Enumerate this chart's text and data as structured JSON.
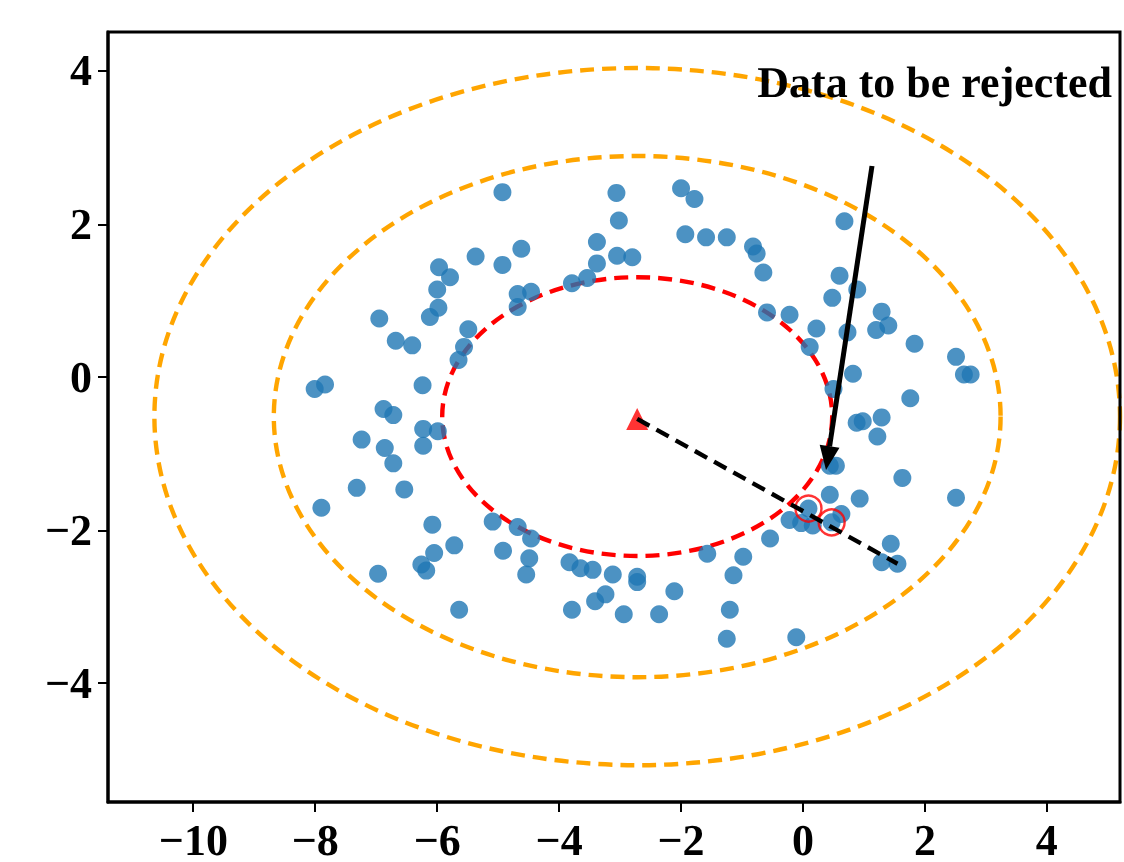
{
  "chart_data": {
    "type": "scatter",
    "xlim": [
      -11.4,
      5.2
    ],
    "ylim": [
      -5.55,
      4.5
    ],
    "xticks": [
      {
        "value": -10,
        "label": "−10"
      },
      {
        "value": -8,
        "label": "−8"
      },
      {
        "value": -6,
        "label": "−6"
      },
      {
        "value": -4,
        "label": "−4"
      },
      {
        "value": -2,
        "label": "−2"
      },
      0,
      2,
      4
    ],
    "yticks": [
      {
        "value": -4,
        "label": "−4"
      },
      {
        "value": -2,
        "label": "−2"
      },
      0,
      2,
      4
    ],
    "grid": false,
    "annotations": [
      "Data to be rejected"
    ],
    "series": [
      {
        "marker": "circle",
        "color": "#1f77b4",
        "x": [
          -4.93,
          -5.37,
          -4.93,
          -4.62,
          -5.97,
          -5.79,
          -6.0,
          -5.98,
          -6.12,
          -6.95,
          -6.68,
          -6.41,
          -5.49,
          -5.56,
          -5.65,
          -4.68,
          -4.46,
          -4.68,
          -3.79,
          -7.84,
          -8.01,
          -6.24,
          -6.88,
          -6.72,
          -6.23,
          -5.99,
          -7.24,
          -3.06,
          -2.0,
          -1.78,
          -3.02,
          -1.93,
          -1.59,
          -1.25,
          -3.38,
          -3.38,
          -3.05,
          -2.8,
          -0.82,
          -0.76,
          -0.65,
          -3.54,
          0.68,
          0.6,
          0.89,
          0.48,
          -0.59,
          -0.22,
          1.29,
          1.2,
          1.4,
          0.22,
          0.11,
          0.73,
          1.83,
          2.51,
          2.64,
          2.75,
          0.82,
          0.5,
          1.76,
          0.88,
          0.98,
          1.29,
          1.22,
          0.44,
          0.54,
          1.63,
          2.51,
          0.44,
          0.93,
          0.63,
          0.09,
          0.47,
          -0.22,
          -0.03,
          0.16,
          -0.54,
          1.44,
          1.29,
          1.55,
          -1.57,
          -0.98,
          -1.14,
          -1.2,
          -1.25,
          -0.11,
          -2.11,
          -2.36,
          -2.72,
          -2.72,
          -3.12,
          -2.94,
          -3.24,
          -3.41,
          -3.45,
          -3.65,
          -3.83,
          -3.79,
          -6.86,
          -6.72,
          -6.23,
          -7.32,
          -6.54,
          -7.9,
          -6.08,
          -6.05,
          -5.72,
          -6.26,
          -6.18,
          -6.97,
          -5.64,
          -5.09,
          -4.92,
          -4.68,
          -4.46,
          -4.49,
          -4.54
        ],
        "values": [
          2.41,
          1.57,
          1.46,
          1.67,
          1.43,
          1.3,
          1.14,
          0.9,
          0.78,
          0.76,
          0.47,
          0.41,
          0.62,
          0.39,
          0.22,
          1.08,
          1.11,
          0.91,
          1.22,
          -0.1,
          -0.16,
          -0.11,
          -0.42,
          -0.5,
          -0.68,
          -0.71,
          -0.82,
          2.4,
          2.46,
          2.32,
          2.04,
          1.86,
          1.82,
          1.82,
          1.76,
          1.48,
          1.58,
          1.56,
          1.7,
          1.61,
          1.36,
          1.29,
          2.03,
          1.32,
          1.14,
          1.03,
          0.84,
          0.81,
          0.85,
          0.61,
          0.67,
          0.63,
          0.39,
          0.58,
          0.43,
          0.26,
          0.03,
          0.03,
          0.04,
          -0.16,
          -0.28,
          -0.6,
          -0.58,
          -0.53,
          -0.78,
          -1.16,
          -1.16,
          -1.32,
          -1.58,
          -1.54,
          -1.59,
          -1.79,
          -1.72,
          -1.9,
          -1.87,
          -1.91,
          -1.94,
          -2.11,
          -2.18,
          -2.42,
          -2.44,
          -2.31,
          -2.35,
          -2.59,
          -3.04,
          -3.42,
          -3.4,
          -2.8,
          -3.1,
          -2.61,
          -2.68,
          -2.58,
          -3.1,
          -2.84,
          -2.93,
          -2.52,
          -2.5,
          -2.42,
          -3.04,
          -0.93,
          -1.13,
          -0.9,
          -1.45,
          -1.47,
          -1.71,
          -1.93,
          -2.3,
          -2.2,
          -2.45,
          -2.53,
          -2.57,
          -3.04,
          -1.89,
          -2.27,
          -1.96,
          -2.11,
          -2.37,
          -2.58
        ]
      },
      {
        "marker": "circle",
        "color": "#ff0000",
        "x": [
          0.09,
          0.47
        ],
        "values": [
          -1.72,
          -1.9
        ]
      },
      {
        "type": "line",
        "marker": "none",
        "line_style": "dashed",
        "color": "#000000",
        "x": [
          -2.72,
          1.55
        ],
        "values": [
          -0.55,
          -2.44
        ]
      },
      {
        "marker": "triangle",
        "color": "#ff0000",
        "x": [
          -2.72
        ],
        "values": [
          -0.55
        ]
      }
    ]
  }
}
